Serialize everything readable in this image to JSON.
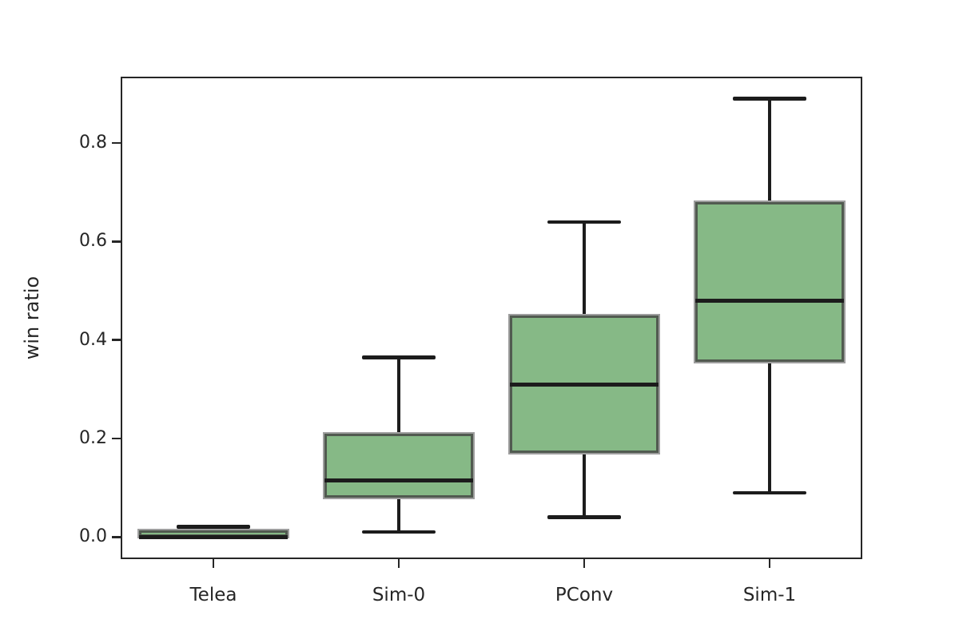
{
  "figure": {
    "ylabel": "win ratio"
  },
  "chart_data": {
    "type": "boxplot",
    "title": "",
    "xlabel": "",
    "ylabel": "win ratio",
    "categories": [
      "Telea",
      "Sim-0",
      "PConv",
      "Sim-1"
    ],
    "series": [
      {
        "name": "Telea",
        "whisker_low": 0.0,
        "q1": 0.0,
        "median": 0.0,
        "q3": 0.013,
        "whisker_high": 0.021
      },
      {
        "name": "Sim-0",
        "whisker_low": 0.01,
        "q1": 0.08,
        "median": 0.115,
        "q3": 0.21,
        "whisker_high": 0.365
      },
      {
        "name": "PConv",
        "whisker_low": 0.04,
        "q1": 0.17,
        "median": 0.31,
        "q3": 0.45,
        "whisker_high": 0.64
      },
      {
        "name": "Sim-1",
        "whisker_low": 0.09,
        "q1": 0.355,
        "median": 0.48,
        "q3": 0.68,
        "whisker_high": 0.89
      }
    ],
    "y_tick_labels": [
      "0.0",
      "0.2",
      "0.4",
      "0.6",
      "0.8"
    ],
    "y_tick_values": [
      0.0,
      0.2,
      0.4,
      0.6,
      0.8
    ],
    "ylim": [
      -0.045,
      0.935
    ],
    "grid": false,
    "legend": "none",
    "colors": {
      "box_fill": "#86b986",
      "box_edge": "#515a50",
      "box_edge_halo": "#9e9e9e",
      "whisker": "#1c1c1c",
      "median": "#1c1c1c",
      "spine": "#262626",
      "text": "#262626"
    }
  }
}
